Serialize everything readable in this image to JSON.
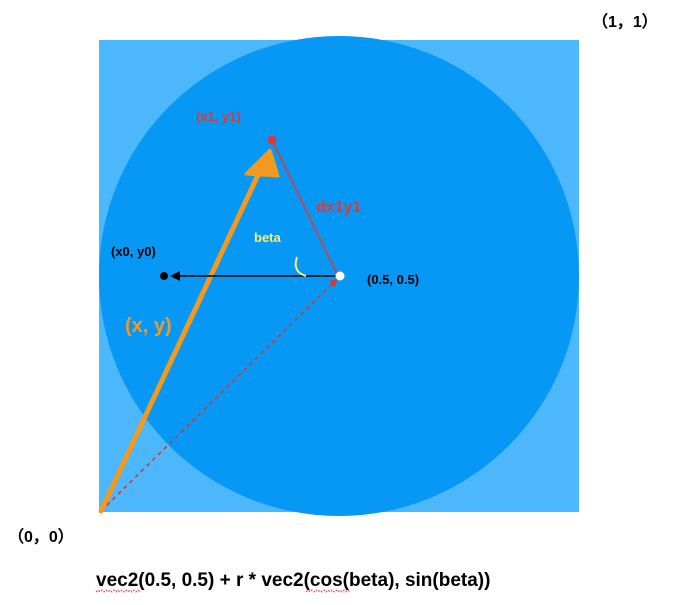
{
  "colors": {
    "square_fill": "#4db7fb",
    "circle_fill": "#0797f5",
    "orange_vector": "#f39a1e",
    "red_vector": "#d93b36",
    "dashed_line": "#e0312c",
    "beta_color": "#f4f37a",
    "black": "#000000"
  },
  "labels": {
    "corner_top_right": "（1，1）",
    "corner_bottom_left": "（0，0）",
    "center": "(0.5, 0.5)",
    "x0y0": "(x0, y0)",
    "x1y1": "(x1, y1)",
    "dx1y1": "dx1y1",
    "beta": "beta",
    "xy": "(x, y)"
  },
  "formula": {
    "part1": "vec2",
    "part2": "(0.5, 0.5) + r * ",
    "part3": "vec2",
    "part4": "(cos(beta), sin(beta))"
  }
}
